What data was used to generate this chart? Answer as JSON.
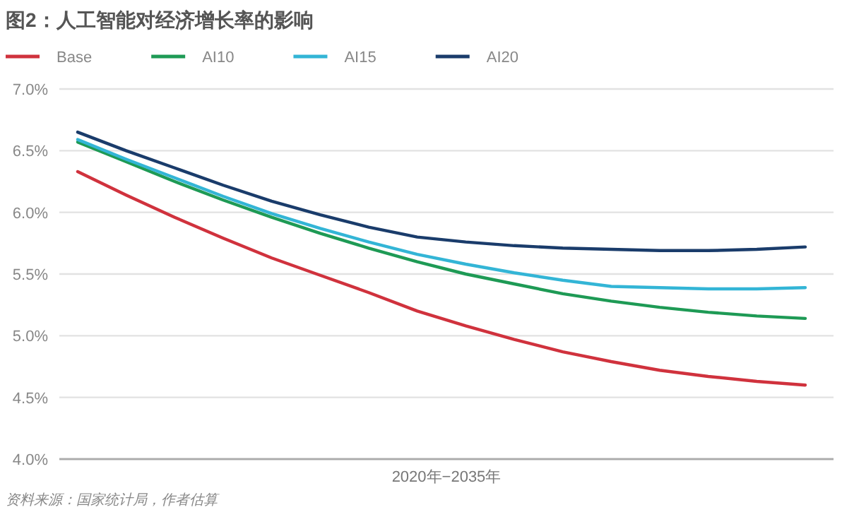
{
  "chart_data": {
    "type": "line",
    "title": "图2：人工智能对经济增长率的影响",
    "xlabel": "2020年−2035年",
    "categories": [
      null,
      null,
      null,
      null,
      null,
      null,
      null,
      null,
      null,
      null,
      null,
      null,
      null,
      null,
      null,
      null
    ],
    "series": [
      {
        "name": "Base",
        "color": "#d0323d",
        "values": [
          6.33,
          6.14,
          5.96,
          5.79,
          5.63,
          5.49,
          5.35,
          5.2,
          5.08,
          4.97,
          4.87,
          4.79,
          4.72,
          4.67,
          4.63,
          4.6
        ]
      },
      {
        "name": "AI10",
        "color": "#1e9a55",
        "values": [
          6.57,
          6.41,
          6.25,
          6.1,
          5.96,
          5.83,
          5.71,
          5.6,
          5.5,
          5.42,
          5.34,
          5.28,
          5.23,
          5.19,
          5.16,
          5.14
        ]
      },
      {
        "name": "AI15",
        "color": "#33b5d6",
        "values": [
          6.59,
          6.43,
          6.28,
          6.13,
          5.99,
          5.87,
          5.76,
          5.66,
          5.58,
          5.51,
          5.45,
          5.4,
          5.39,
          5.38,
          5.38,
          5.39
        ]
      },
      {
        "name": "AI20",
        "color": "#1a3c6b",
        "values": [
          6.65,
          6.5,
          6.36,
          6.22,
          6.09,
          5.98,
          5.88,
          5.8,
          5.76,
          5.73,
          5.71,
          5.7,
          5.69,
          5.69,
          5.7,
          5.72
        ]
      }
    ],
    "ylim": [
      4,
      7
    ],
    "yticks": [
      {
        "value": 4,
        "label": "4.0%"
      },
      {
        "value": 4.5,
        "label": "4.5%"
      },
      {
        "value": 5,
        "label": "5.0%"
      },
      {
        "value": 5.5,
        "label": "5.5%"
      },
      {
        "value": 6,
        "label": "6.0%"
      },
      {
        "value": 6.5,
        "label": "6.5%"
      },
      {
        "value": 7,
        "label": "7.0%"
      }
    ],
    "grid": "y",
    "legend": "top left",
    "marker": "none",
    "line_style": "solid",
    "annotations": [
      "资料来源：国家统计局，作者估算"
    ]
  }
}
